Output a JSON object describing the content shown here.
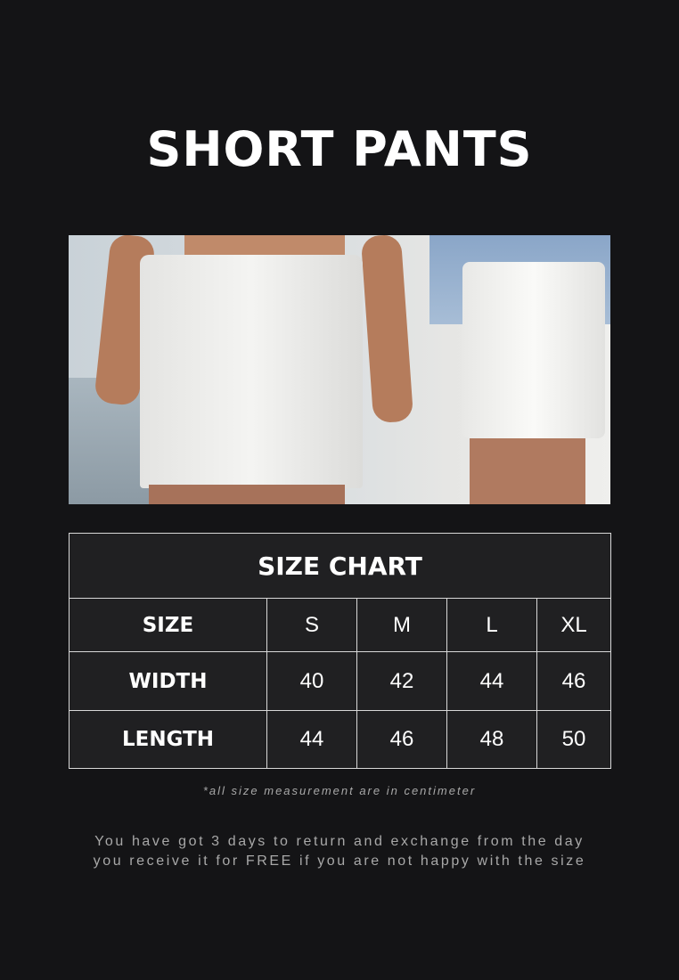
{
  "title": "SHORT PANTS",
  "photo": {
    "alt": "product-photo-white-shorts"
  },
  "size_chart": {
    "caption": "SIZE CHART",
    "header": [
      "SIZE",
      "S",
      "M",
      "L",
      "XL"
    ],
    "rows": [
      [
        "WIDTH",
        "40",
        "42",
        "44",
        "46"
      ],
      [
        "LENGTH",
        "44",
        "46",
        "48",
        "50"
      ]
    ]
  },
  "note": "*all size measurement are in centimeter",
  "policy": [
    "You have got 3 days to return and exchange from the day",
    "you receive it for FREE if you are not happy with the size"
  ]
}
